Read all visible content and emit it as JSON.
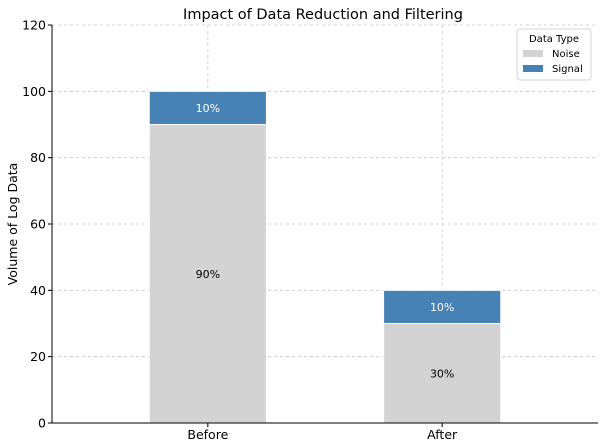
{
  "chart_data": {
    "type": "bar",
    "stacked": true,
    "title": "Impact of Data Reduction and Filtering",
    "xlabel": "",
    "ylabel": "Volume of Log Data",
    "categories": [
      "Before",
      "After"
    ],
    "series": [
      {
        "name": "Noise",
        "values": [
          90,
          30
        ],
        "labels": [
          "90%",
          "30%"
        ],
        "color": "#d3d3d3",
        "label_color": "#000000"
      },
      {
        "name": "Signal",
        "values": [
          10,
          10
        ],
        "labels": [
          "10%",
          "10%"
        ],
        "color": "#4682b4",
        "label_color": "#ffffff"
      }
    ],
    "ylim": [
      0,
      120
    ],
    "yticks": [
      0,
      20,
      40,
      60,
      80,
      100,
      120
    ],
    "grid": true,
    "legend": {
      "title": "Data Type",
      "placement": "top-right"
    }
  }
}
